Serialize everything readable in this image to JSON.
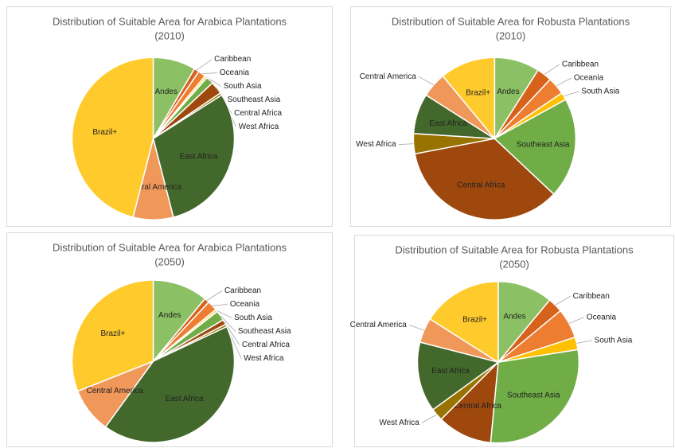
{
  "chart_data": [
    {
      "type": "pie",
      "title": "Distribution of Suitable Area for Arabica Plantations",
      "subtitle": "(2010)",
      "categories": [
        "Andes",
        "Caribbean",
        "Oceania",
        "South Asia",
        "Southeast Asia",
        "Central Africa",
        "West Africa",
        "East Africa",
        "Central America",
        "Brazil+"
      ],
      "values": [
        8.5,
        1,
        1.5,
        0.5,
        1.5,
        2.5,
        0.5,
        30,
        8,
        46
      ],
      "colors": [
        "#8bc164",
        "#d7621b",
        "#ed7d31",
        "#ffd966",
        "#70ad47",
        "#9e480e",
        "#997300",
        "#43682b",
        "#f0975a",
        "#ffca2c"
      ]
    },
    {
      "type": "pie",
      "title": "Distribution of Suitable Area for Robusta Plantations",
      "subtitle": "(2010)",
      "categories": [
        "Andes",
        "Caribbean",
        "Oceania",
        "South Asia",
        "Southeast Asia",
        "Central Africa",
        "West Africa",
        "East Africa",
        "Central America",
        "Brazil+"
      ],
      "values": [
        9,
        3,
        3.5,
        1.5,
        20,
        35,
        4,
        8,
        5,
        11
      ],
      "colors": [
        "#8bc164",
        "#d7621b",
        "#ed7d31",
        "#ffc000",
        "#70ad47",
        "#9e480e",
        "#997300",
        "#43682b",
        "#f0975a",
        "#ffca2c"
      ]
    },
    {
      "type": "pie",
      "title": "Distribution of Suitable Area for Arabica Plantations",
      "subtitle": "(2050)",
      "categories": [
        "Andes",
        "Caribbean",
        "Oceania",
        "South Asia",
        "Southeast Asia",
        "Central Africa",
        "West Africa",
        "East Africa",
        "Central America",
        "Brazil+"
      ],
      "values": [
        11,
        1,
        2,
        0.5,
        2,
        1,
        0.5,
        42,
        9,
        31
      ],
      "colors": [
        "#8bc164",
        "#d7621b",
        "#ed7d31",
        "#ffd966",
        "#70ad47",
        "#9e480e",
        "#997300",
        "#43682b",
        "#f0975a",
        "#ffca2c"
      ]
    },
    {
      "type": "pie",
      "title": "Distribution of Suitable Area for Robusta Plantations",
      "subtitle": "(2050)",
      "categories": [
        "Andes",
        "Caribbean",
        "Oceania",
        "South Asia",
        "Southeast Asia",
        "Central Africa",
        "West Africa",
        "East Africa",
        "Central America",
        "Brazil+"
      ],
      "values": [
        11,
        3,
        6,
        2.5,
        29,
        11,
        2.5,
        14,
        5,
        16
      ],
      "colors": [
        "#8bc164",
        "#d7621b",
        "#ed7d31",
        "#ffc000",
        "#70ad47",
        "#9e480e",
        "#997300",
        "#43682b",
        "#f0975a",
        "#ffca2c"
      ]
    }
  ]
}
